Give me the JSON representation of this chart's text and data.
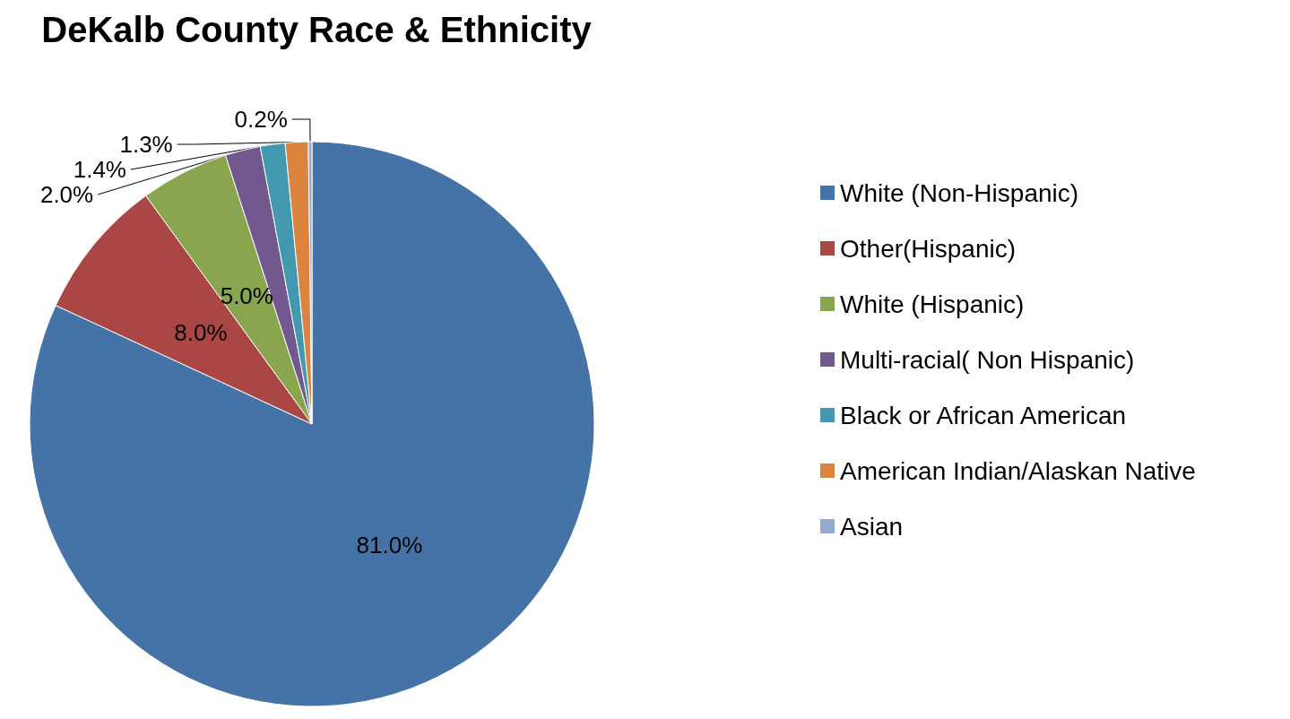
{
  "chart_data": {
    "type": "pie",
    "title": "DeKalb County Race & Ethnicity",
    "categories": [
      "White (Non-Hispanic)",
      "Other(Hispanic)",
      "White (Hispanic)",
      "Multi-racial( Non Hispanic)",
      "Black or African American",
      "American Indian/Alaskan Native",
      "Asian"
    ],
    "values": [
      81.0,
      8.0,
      5.0,
      2.0,
      1.4,
      1.3,
      0.2
    ],
    "value_labels": [
      "81.0%",
      "8.0%",
      "5.0%",
      "2.0%",
      "1.4%",
      "1.3%",
      "0.2%"
    ],
    "colors": [
      "#4572a7",
      "#aa4643",
      "#89a54e",
      "#71588f",
      "#4198af",
      "#db843d",
      "#93a9cf"
    ],
    "legend": "right"
  }
}
